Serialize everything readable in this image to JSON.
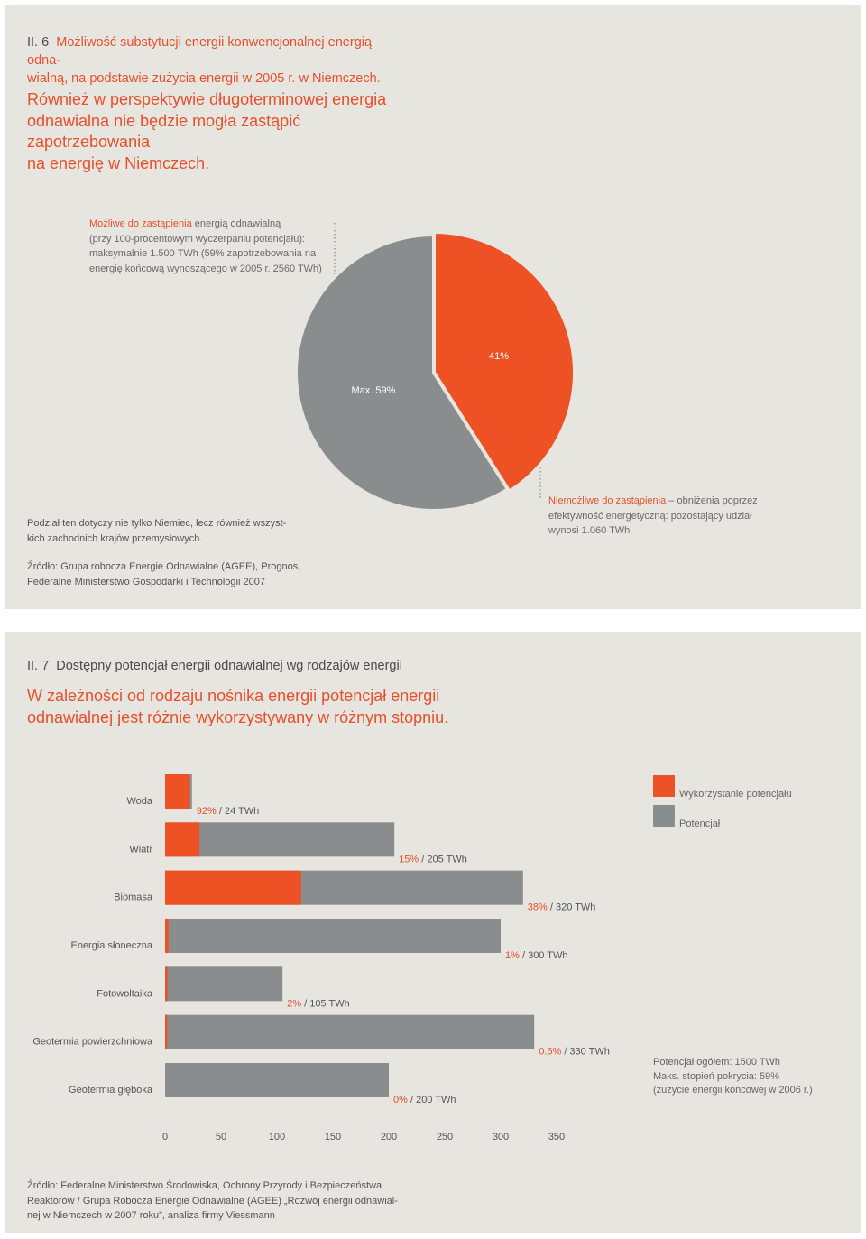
{
  "section1": {
    "number": "II. 6",
    "title": "Możliwość substytucji energii konwencjonalnej energią odnawialną, na podstawie zużycia energii w 2005 r. w Niemczech.",
    "title_line1": "Możliwość substytucji energii konwencjonalnej energią odna-",
    "title_line2": "wialną, na podstawie zużycia energii w 2005 r. w Niemczech.",
    "lead_line1": "Również w perspektywie długoterminowej energia",
    "lead_line2": "odnawialna nie będzie mogła zastąpić zapotrzebowania",
    "lead_line3": "na energię w Niemczech.",
    "callout_left": {
      "highlight": "Możliwe do zastąpienia",
      "line1_rest": " energią odnawialną",
      "line2": "(przy 100-procentowym wyczerpaniu potencjału):",
      "line3": "maksymalnie 1.500 TWh (59% zapotrzebowania na",
      "line4": "energię końcową wynoszącego w 2005 r. 2560 TWh)"
    },
    "callout_right": {
      "highlight": "Niemożliwe do zastąpienia",
      "line1_rest": " – obniżenia poprzez",
      "line2": "efektywność energetyczną: pozostający udział",
      "line3": "wynosi 1.060 TWh"
    },
    "note_line1": "Podział ten dotyczy nie tylko Niemiec, lecz również wszyst-",
    "note_line2": "kich zachodnich krajów przemysłowych.",
    "source_line1": "Źródło: Grupa robocza Energie Odnawialne (AGEE), Prognos,",
    "source_line2": "Federalne Ministerstwo Gospodarki i Technologii 2007"
  },
  "section2": {
    "number": "II. 7",
    "title": "Dostępny potencjał energii odnawialnej wg rodzajów energii",
    "lead_line1": "W zależności od rodzaju nośnika energii potencjał energii",
    "lead_line2": "odnawialnej jest różnie wykorzystywany w różnym stopniu.",
    "legend": {
      "used": "Wykorzystanie potencjału",
      "potential": "Potencjał"
    },
    "summary_line1": "Potencjał ogółem: 1500 TWh",
    "summary_line2": "Maks. stopień pokrycia: 59%",
    "summary_line3": "(zużycie energii końcowej w 2006 r.)",
    "source_line1": "Źródło: Federalne Ministerstwo Środowiska, Ochrony Przyrody i Bezpieczeństwa",
    "source_line2": "Reaktorów / Grupa Robocza Energie Odnawialne (AGEE) „Rozwój energii odnawial-",
    "source_line3": "nej w Niemczech w 2007 roku”, analiza firmy Viessmann"
  },
  "chart_data": [
    {
      "type": "pie",
      "slices": [
        {
          "label": "41%",
          "value": 41,
          "color": "#ee5124"
        },
        {
          "label": "Max. 59%",
          "value": 59,
          "color": "#8a8d8e"
        }
      ]
    },
    {
      "type": "bar",
      "orientation": "horizontal",
      "categories": [
        "Woda",
        "Wiatr",
        "Biomasa",
        "Energia słoneczna",
        "Fotowoltaika",
        "Geotermia powierzchniowa",
        "Geotermia głęboka"
      ],
      "series": [
        {
          "name": "Wykorzystanie potencjału",
          "values_pct": [
            92,
            15,
            38,
            1,
            2,
            0.6,
            0
          ],
          "color": "#ee5124"
        },
        {
          "name": "Potencjał",
          "values": [
            24,
            205,
            320,
            300,
            105,
            330,
            200
          ],
          "color": "#8a8d8e"
        }
      ],
      "labels_pct": [
        "92%",
        "15%",
        "38%",
        "1%",
        "2%",
        "0.6%",
        "0%"
      ],
      "labels_twh": [
        " / 24 TWh",
        " / 205 TWh",
        " / 320 TWh",
        " / 300 TWh",
        " / 105 TWh",
        " / 330 TWh",
        " / 200 TWh"
      ],
      "xlim": [
        0,
        350
      ],
      "xticks": [
        0,
        50,
        100,
        150,
        200,
        250,
        300,
        350
      ],
      "grid": false,
      "legend_position": "top-right"
    }
  ]
}
